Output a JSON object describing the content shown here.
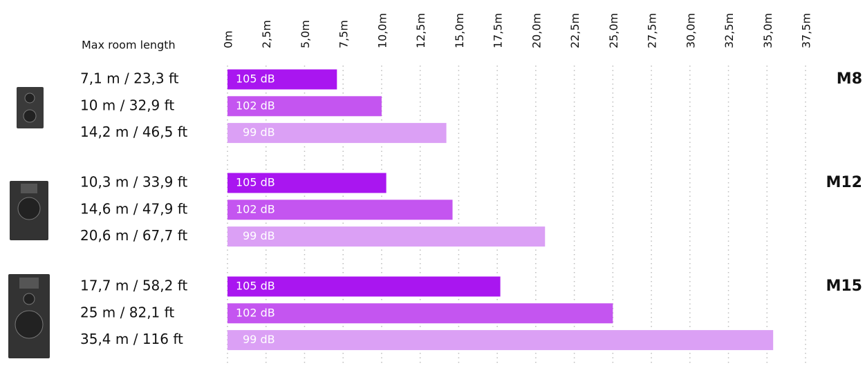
{
  "chart_data": {
    "type": "bar",
    "orientation": "horizontal",
    "x_label": "Max room length",
    "categories": [
      "M8",
      "M12",
      "M15"
    ],
    "series": [
      {
        "name": "105 dB",
        "color": "#a916f0",
        "values": [
          7.1,
          10.3,
          17.7
        ],
        "value_labels": [
          "7,1 m / 23,3 ft",
          "10,3 m / 33,9 ft",
          "17,7 m / 58,2 ft"
        ]
      },
      {
        "name": "102 dB",
        "color": "#c455f0",
        "values": [
          10,
          14.6,
          25
        ],
        "value_labels": [
          "10 m / 32,9 ft",
          "14,6 m / 47,9 ft",
          "25 m / 82,1 ft"
        ]
      },
      {
        "name": "99 dB",
        "color": "#dba0f5",
        "values": [
          14.2,
          20.6,
          35.4
        ],
        "value_labels": [
          "14,2 m / 46,5 ft",
          "20,6 m / 67,7 ft",
          "35,4 m / 116 ft"
        ]
      }
    ],
    "xlim": [
      0,
      37.5
    ],
    "xticks": [
      {
        "value": 0,
        "label": "0m"
      },
      {
        "value": 2.5,
        "label": "2,5m"
      },
      {
        "value": 5,
        "label": "5,0m"
      },
      {
        "value": 7.5,
        "label": "7,5m"
      },
      {
        "value": 10,
        "label": "10,0m"
      },
      {
        "value": 12.5,
        "label": "12,5m"
      },
      {
        "value": 15,
        "label": "15,0m"
      },
      {
        "value": 17.5,
        "label": "17,5m"
      },
      {
        "value": 20,
        "label": "20,0m"
      },
      {
        "value": 22.5,
        "label": "22,5m"
      },
      {
        "value": 25,
        "label": "25,0m"
      },
      {
        "value": 27.5,
        "label": "27,5m"
      },
      {
        "value": 30,
        "label": "30,0m"
      },
      {
        "value": 32.5,
        "label": "32,5m"
      },
      {
        "value": 35,
        "label": "35,0m"
      },
      {
        "value": 37.5,
        "label": "37,5m"
      }
    ],
    "grid": true
  }
}
